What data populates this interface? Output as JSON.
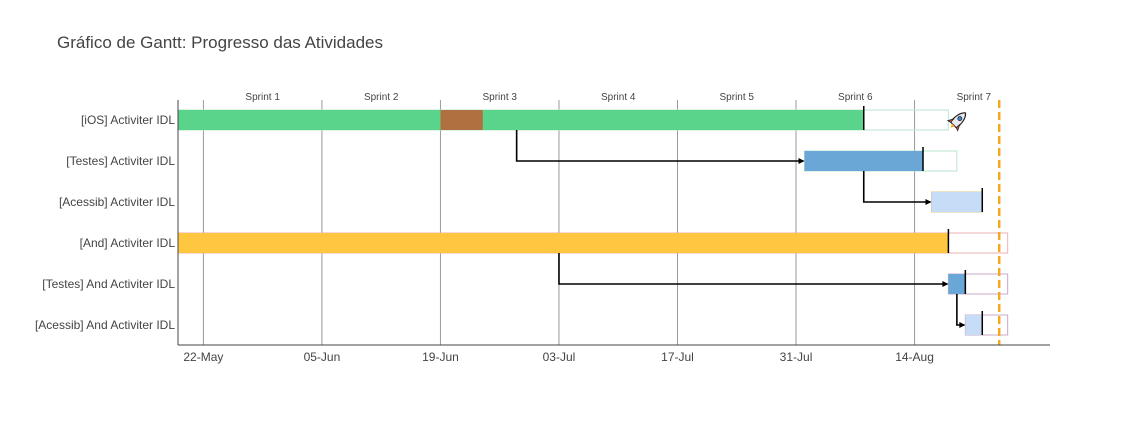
{
  "chart_data": {
    "type": "gantt",
    "title": "Gráfico de Gantt: Progresso das Atividades",
    "xlabel": "",
    "ylabel": "",
    "x_range": [
      "2023-05-19",
      "2023-08-30"
    ],
    "x_ticks": [
      {
        "date": "2023-05-22",
        "label": "22-May"
      },
      {
        "date": "2023-06-05",
        "label": "05-Jun"
      },
      {
        "date": "2023-06-19",
        "label": "19-Jun"
      },
      {
        "date": "2023-07-03",
        "label": "03-Jul"
      },
      {
        "date": "2023-07-17",
        "label": "17-Jul"
      },
      {
        "date": "2023-07-31",
        "label": "31-Jul"
      },
      {
        "date": "2023-08-14",
        "label": "14-Aug"
      }
    ],
    "sprints": [
      {
        "label": "Sprint 1",
        "start": "2023-05-22",
        "end": "2023-06-05"
      },
      {
        "label": "Sprint 2",
        "start": "2023-06-05",
        "end": "2023-06-19"
      },
      {
        "label": "Sprint 3",
        "start": "2023-06-19",
        "end": "2023-07-03"
      },
      {
        "label": "Sprint 4",
        "start": "2023-07-03",
        "end": "2023-07-17"
      },
      {
        "label": "Sprint 5",
        "start": "2023-07-17",
        "end": "2023-07-31"
      },
      {
        "label": "Sprint 6",
        "start": "2023-07-31",
        "end": "2023-08-14"
      },
      {
        "label": "Sprint 7",
        "start": "2023-08-14",
        "end": "2023-08-28"
      }
    ],
    "deadline": "2023-08-24",
    "tasks": [
      {
        "label": "[iOS] Activiter IDL",
        "start": "2023-05-19",
        "progress_end": "2023-08-08",
        "plan_end": "2023-08-18",
        "color": "#5ad48a",
        "outline": "#b9e6cf",
        "milestone_icon": "rocket-icon"
      },
      {
        "label": "[Testes] Activiter IDL",
        "start": "2023-08-01",
        "progress_end": "2023-08-15",
        "plan_end": "2023-08-19",
        "color": "#6aa6d6",
        "outline": "#b9e6cf"
      },
      {
        "label": "[Acessib] Activiter IDL",
        "start": "2023-08-16",
        "progress_end": "2023-08-22",
        "plan_end": "2023-08-22",
        "color": "#c6dcf7",
        "outline": "#d9c58a"
      },
      {
        "label": "[And] Activiter IDL",
        "start": "2023-05-19",
        "progress_end": "2023-08-18",
        "plan_end": "2023-08-25",
        "color": "#ffc640",
        "outline": "#efb0b0"
      },
      {
        "label": "[Testes] And Activiter IDL",
        "start": "2023-08-18",
        "progress_end": "2023-08-20",
        "plan_end": "2023-08-25",
        "color": "#6aa6d6",
        "outline": "#c8a8c8"
      },
      {
        "label": "[Acessib] And Activiter IDL",
        "start": "2023-08-20",
        "progress_end": "2023-08-22",
        "plan_end": "2023-08-25",
        "color": "#c6dcf7",
        "outline": "#c8a8c8"
      }
    ],
    "highlight_segment": {
      "task": 0,
      "start": "2023-06-19",
      "end": "2023-06-24",
      "color": "#b07040"
    },
    "dependencies": [
      {
        "from_date": "2023-06-28",
        "from_task": 0,
        "to_task": 1,
        "to_date": "2023-08-01"
      },
      {
        "from_date": "2023-08-08",
        "from_task": 1,
        "to_task": 2,
        "to_date": "2023-08-16"
      },
      {
        "from_date": "2023-07-03",
        "from_task": 3,
        "to_task": 4,
        "to_date": "2023-08-18"
      },
      {
        "from_date": "2023-08-19",
        "from_task": 4,
        "to_task": 5,
        "to_date": "2023-08-20"
      }
    ]
  }
}
